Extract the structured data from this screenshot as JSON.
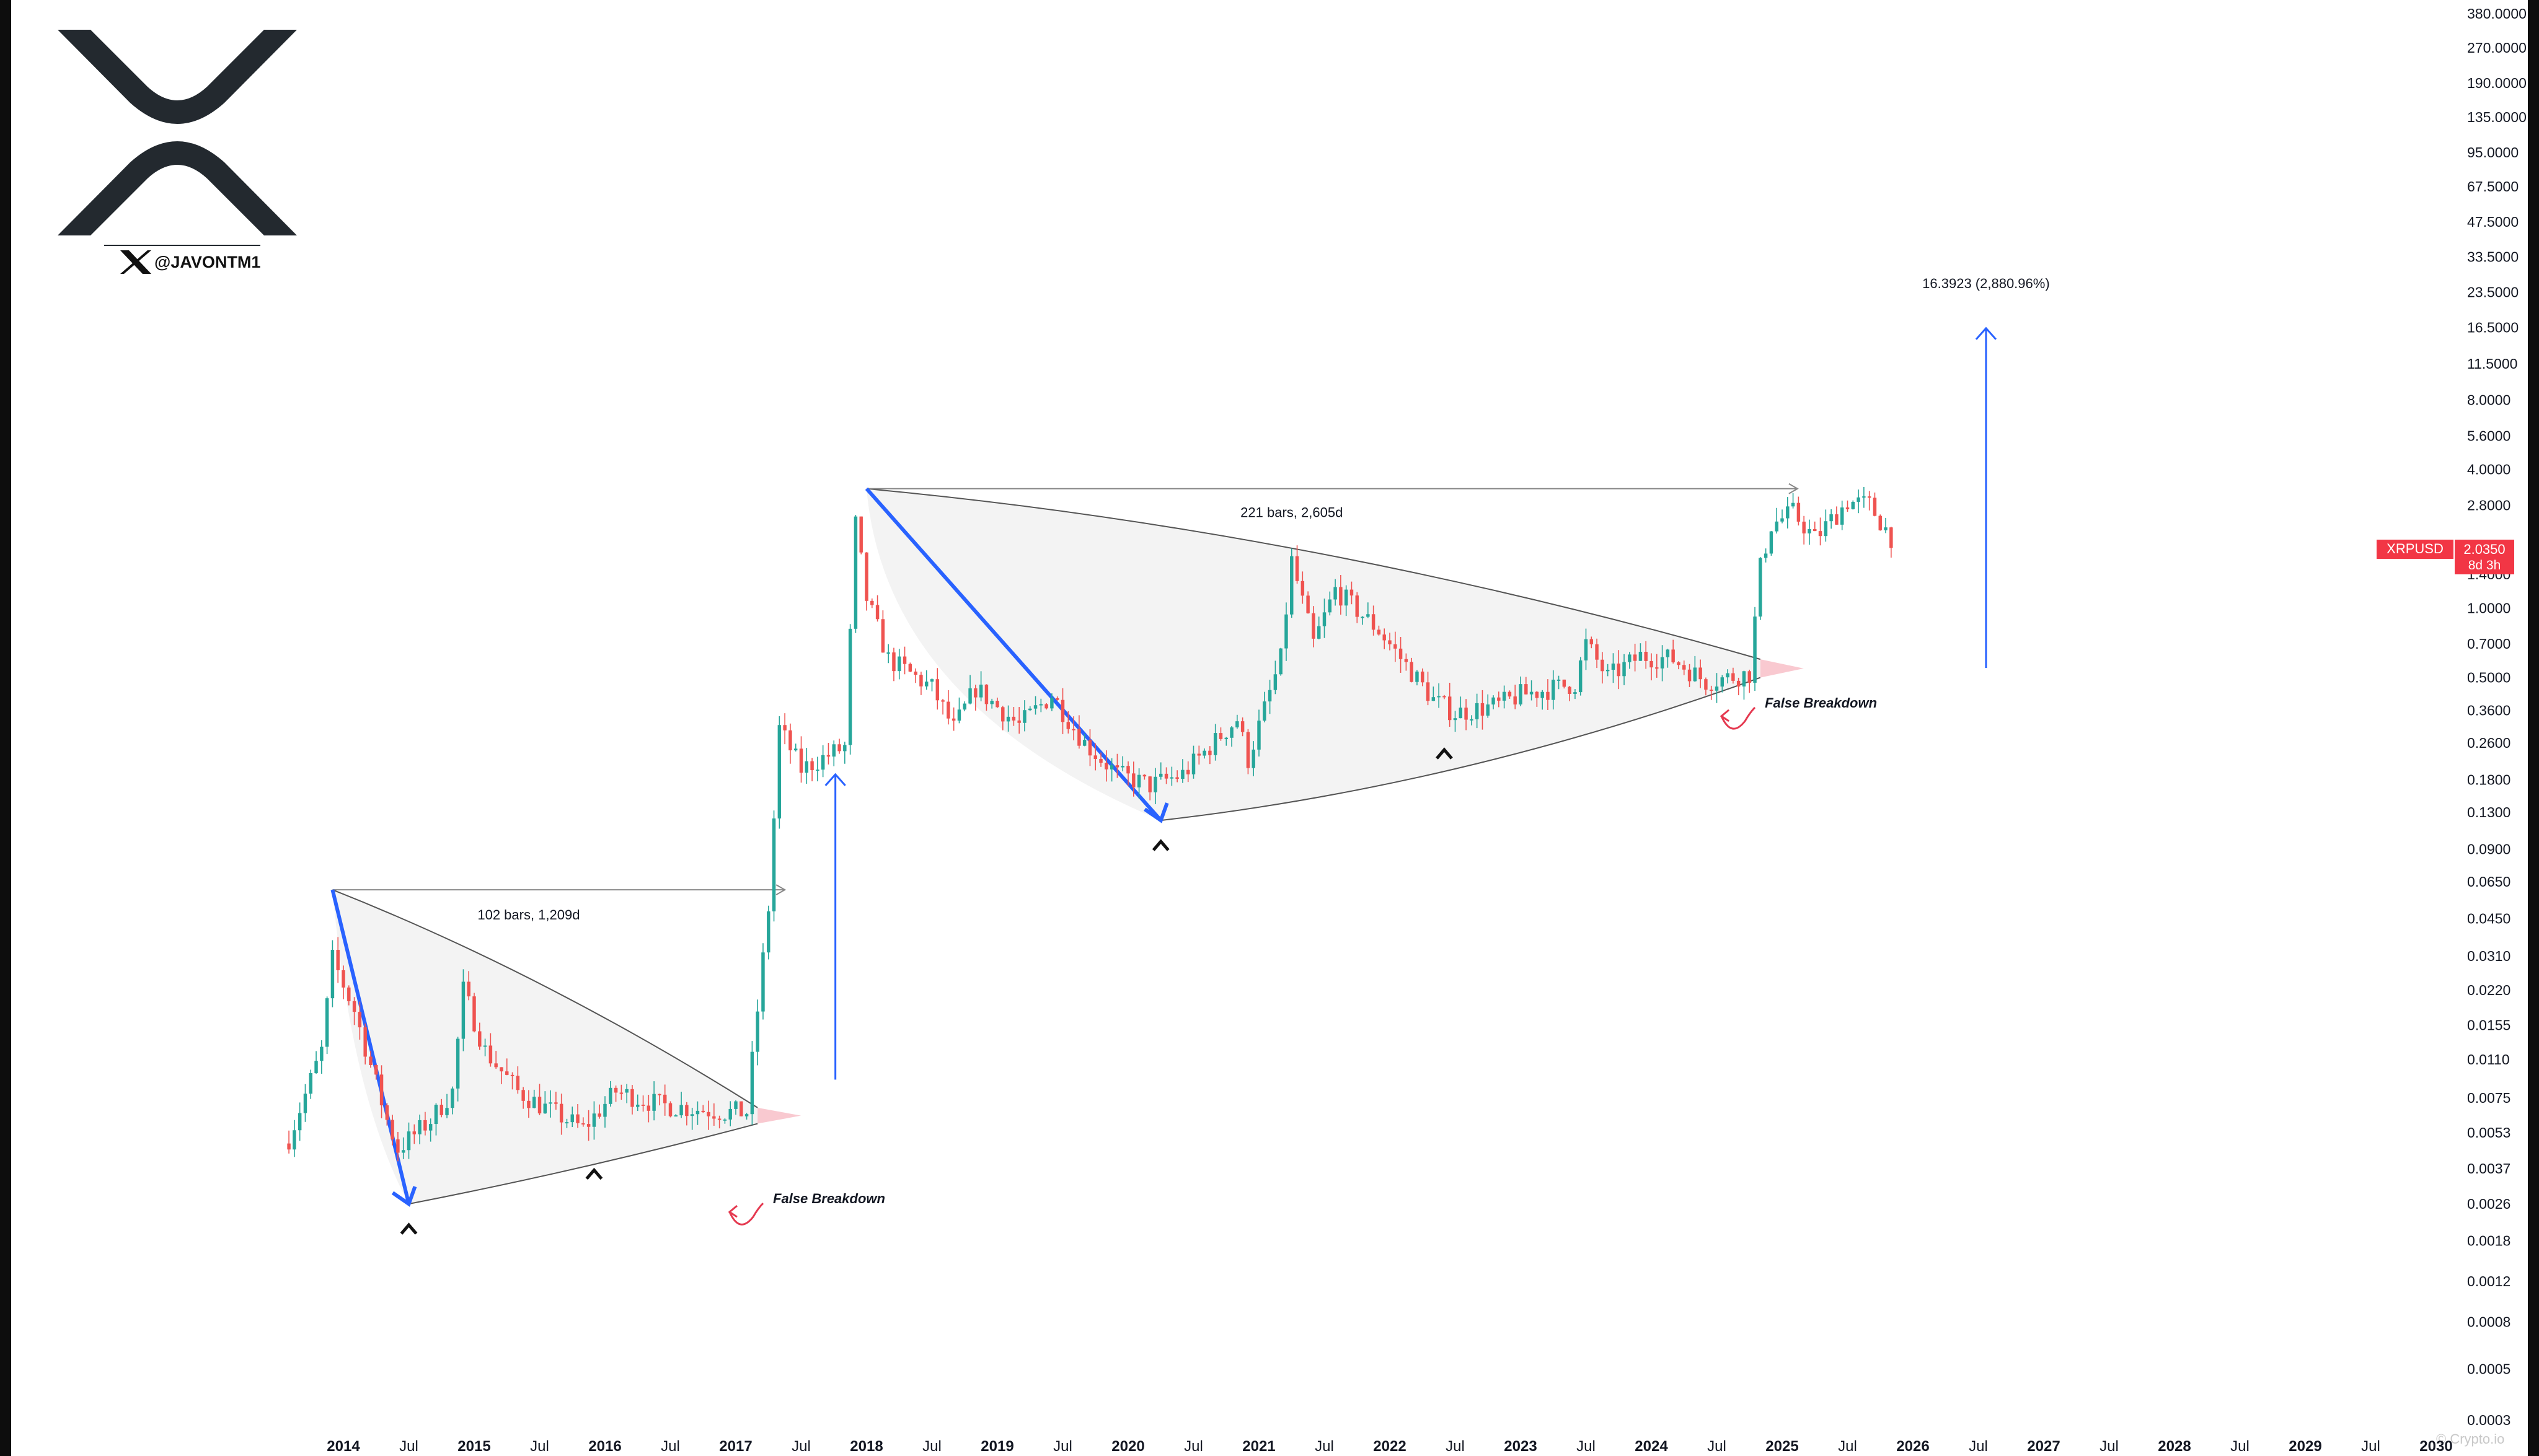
{
  "logo": {
    "handle": "@JAVONTM1"
  },
  "badge": {
    "symbol": "XRPUSD",
    "price": "2.0350",
    "countdown": "8d 3h"
  },
  "colors": {
    "up": "#26a69a",
    "down": "#ef5350",
    "arrow_blue": "#2962ff",
    "projection_blue": "#2962ff",
    "pattern_line": "#555555",
    "breakdown_red": "#e53950",
    "triangle_fill": "#f3f3f3",
    "extension_fill": "#f7bcc4"
  },
  "annotations": {
    "bars_1": "102 bars, 1,209d",
    "bars_2": "221 bars, 2,605d",
    "false_breakdown_1": "False Breakdown",
    "false_breakdown_2": "False Breakdown",
    "projection": "16.3923 (2,880.96%)",
    "watermark": "© Crypto.io"
  },
  "chart_data": {
    "type": "candlestick",
    "symbol": "XRPUSD",
    "timeframe": "monthly",
    "y_scale": "log",
    "grid": false,
    "y_ticks": [
      "380.0000",
      "270.0000",
      "190.0000",
      "135.0000",
      "95.0000",
      "67.5000",
      "47.5000",
      "33.5000",
      "23.5000",
      "16.5000",
      "11.5000",
      "8.0000",
      "5.6000",
      "4.0000",
      "2.8000",
      "1.4000",
      "1.0000",
      "0.7000",
      "0.5000",
      "0.3600",
      "0.2600",
      "0.1800",
      "0.1300",
      "0.0900",
      "0.0650",
      "0.0450",
      "0.0310",
      "0.0220",
      "0.0155",
      "0.0110",
      "0.0075",
      "0.0053",
      "0.0037",
      "0.0026",
      "0.0018",
      "0.0012",
      "0.0008",
      "0.0005",
      "0.0003"
    ],
    "x_ticks": [
      {
        "label": "2014",
        "bold": true
      },
      {
        "label": "Jul",
        "bold": false
      },
      {
        "label": "2015",
        "bold": true
      },
      {
        "label": "Jul",
        "bold": false
      },
      {
        "label": "2016",
        "bold": true
      },
      {
        "label": "Jul",
        "bold": false
      },
      {
        "label": "2017",
        "bold": true
      },
      {
        "label": "Jul",
        "bold": false
      },
      {
        "label": "2018",
        "bold": true
      },
      {
        "label": "Jul",
        "bold": false
      },
      {
        "label": "2019",
        "bold": true
      },
      {
        "label": "Jul",
        "bold": false
      },
      {
        "label": "2020",
        "bold": true
      },
      {
        "label": "Jul",
        "bold": false
      },
      {
        "label": "2021",
        "bold": true
      },
      {
        "label": "Jul",
        "bold": false
      },
      {
        "label": "2022",
        "bold": true
      },
      {
        "label": "Jul",
        "bold": false
      },
      {
        "label": "2023",
        "bold": true
      },
      {
        "label": "Jul",
        "bold": false
      },
      {
        "label": "2024",
        "bold": true
      },
      {
        "label": "Jul",
        "bold": false
      },
      {
        "label": "2025",
        "bold": true
      },
      {
        "label": "Jul",
        "bold": false
      },
      {
        "label": "2026",
        "bold": true
      },
      {
        "label": "Jul",
        "bold": false
      },
      {
        "label": "2027",
        "bold": true
      },
      {
        "label": "Jul",
        "bold": false
      },
      {
        "label": "2028",
        "bold": true
      },
      {
        "label": "Jul",
        "bold": false
      },
      {
        "label": "2029",
        "bold": true
      },
      {
        "label": "Jul",
        "bold": false
      },
      {
        "label": "2030",
        "bold": true
      }
    ],
    "last_price": 2.035,
    "keyframes": [
      [
        "2013-08",
        0.005
      ],
      [
        "2013-11",
        0.012
      ],
      [
        "2013-12",
        0.03
      ],
      [
        "2014-02",
        0.018
      ],
      [
        "2014-05",
        0.006
      ],
      [
        "2014-06",
        0.0045
      ],
      [
        "2014-09",
        0.006
      ],
      [
        "2014-11",
        0.008
      ],
      [
        "2014-12",
        0.022
      ],
      [
        "2015-02",
        0.012
      ],
      [
        "2015-05",
        0.008
      ],
      [
        "2015-07",
        0.007
      ],
      [
        "2015-11",
        0.0055
      ],
      [
        "2016-02",
        0.008
      ],
      [
        "2016-06",
        0.007
      ],
      [
        "2016-12",
        0.0065
      ],
      [
        "2017-02",
        0.0065
      ],
      [
        "2017-04",
        0.05
      ],
      [
        "2017-05",
        0.3
      ],
      [
        "2017-07",
        0.2
      ],
      [
        "2017-11",
        0.25
      ],
      [
        "2017-12",
        2.3
      ],
      [
        "2018-01",
        1.1
      ],
      [
        "2018-03",
        0.6
      ],
      [
        "2018-07",
        0.45
      ],
      [
        "2018-09",
        0.3
      ],
      [
        "2018-11",
        0.45
      ],
      [
        "2019-03",
        0.31
      ],
      [
        "2019-06",
        0.42
      ],
      [
        "2019-09",
        0.26
      ],
      [
        "2019-12",
        0.19
      ],
      [
        "2020-03",
        0.17
      ],
      [
        "2020-06",
        0.19
      ],
      [
        "2020-11",
        0.33
      ],
      [
        "2020-12",
        0.22
      ],
      [
        "2021-03",
        0.6
      ],
      [
        "2021-04",
        1.6
      ],
      [
        "2021-06",
        0.7
      ],
      [
        "2021-08",
        1.2
      ],
      [
        "2021-12",
        0.8
      ],
      [
        "2022-05",
        0.4
      ],
      [
        "2022-07",
        0.35
      ],
      [
        "2022-11",
        0.38
      ],
      [
        "2023-01",
        0.42
      ],
      [
        "2023-06",
        0.47
      ],
      [
        "2023-07",
        0.7
      ],
      [
        "2023-09",
        0.5
      ],
      [
        "2023-12",
        0.62
      ],
      [
        "2024-03",
        0.6
      ],
      [
        "2024-06",
        0.48
      ],
      [
        "2024-10",
        0.52
      ],
      [
        "2024-11",
        1.5
      ],
      [
        "2024-12",
        2.3
      ],
      [
        "2025-02",
        2.6
      ],
      [
        "2025-04",
        2.0
      ],
      [
        "2025-07",
        2.9
      ],
      [
        "2025-09",
        2.8
      ],
      [
        "2025-11",
        2.035
      ]
    ],
    "patterns": [
      {
        "name": "symmetrical-triangle-1",
        "label": "102 bars, 1,209d",
        "top_start": [
          "2013-12",
          0.06
        ],
        "top_end": [
          "2017-03",
          0.0068
        ],
        "bottom_start": [
          "2014-07",
          0.0026
        ],
        "bottom_end": [
          "2017-03",
          0.0058
        ],
        "breakout": [
          "2017-03",
          0.0065
        ],
        "measured_move": [
          "2017-03",
          0.066
        ],
        "false_breakdown_at": [
          "2017-02",
          0.0028
        ]
      },
      {
        "name": "symmetrical-triangle-2",
        "label": "221 bars, 2,605d",
        "top_start": [
          "2018-01",
          3.3
        ],
        "top_end": [
          "2024-11",
          0.6
        ],
        "bottom_start": [
          "2020-04",
          0.12
        ],
        "bottom_end": [
          "2024-11",
          0.5
        ],
        "breakout": [
          "2024-11",
          0.55
        ],
        "measured_move": [
          "2024-11",
          3.3
        ],
        "false_breakdown_at": [
          "2024-08",
          0.34
        ]
      }
    ],
    "projection": {
      "label": "16.3923 (2,880.96%)",
      "from": [
        "2026-06",
        0.55
      ],
      "to": [
        "2026-06",
        16.3923
      ]
    }
  }
}
